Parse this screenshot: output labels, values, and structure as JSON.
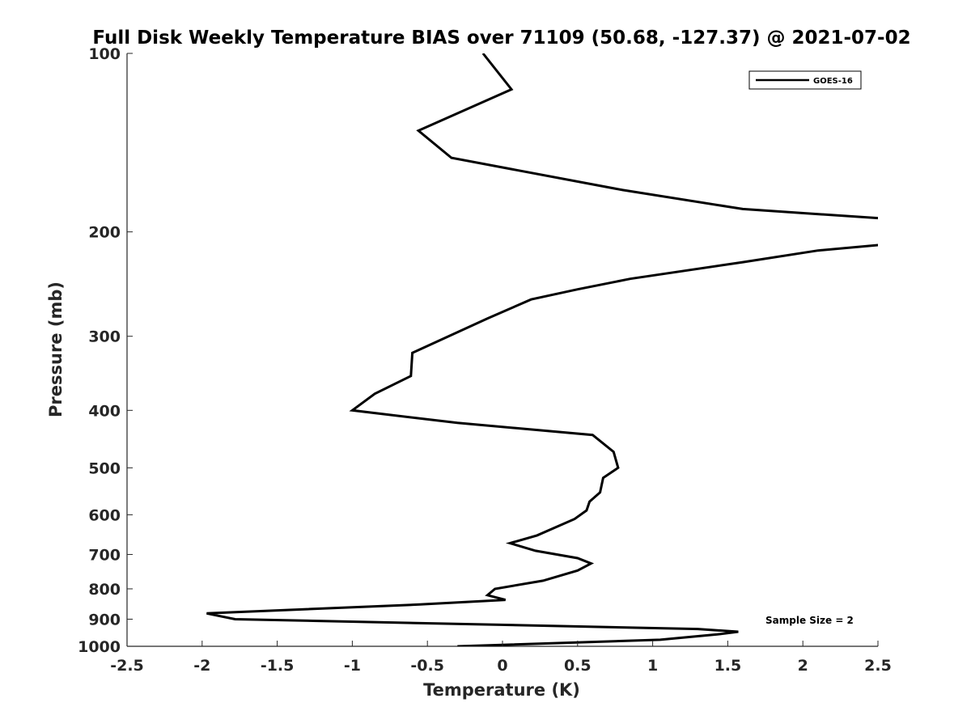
{
  "chart_data": {
    "type": "line",
    "title": "Full Disk Weekly Temperature BIAS over 71109 (50.68, -127.37) @ 2021-07-02",
    "xlabel": "Temperature (K)",
    "ylabel": "Pressure (mb)",
    "xlim": [
      -2.5,
      2.5
    ],
    "ylim": [
      100,
      1000
    ],
    "y_scale": "log",
    "y_reversed": true,
    "x_ticks": [
      "-2.5",
      "-2",
      "-1.5",
      "-1",
      "-0.5",
      "0",
      "0.5",
      "1",
      "1.5",
      "2",
      "2.5"
    ],
    "y_ticks": [
      "100",
      "200",
      "300",
      "400",
      "500",
      "600",
      "700",
      "800",
      "900",
      "1000"
    ],
    "grid": false,
    "legend_position": "top-right",
    "series": [
      {
        "name": "GOES-16",
        "color": "#000000",
        "points": [
          {
            "x": -0.13,
            "p": 100
          },
          {
            "x": 0.06,
            "p": 115
          },
          {
            "x": -0.56,
            "p": 135
          },
          {
            "x": -0.34,
            "p": 150
          },
          {
            "x": 0.8,
            "p": 170
          },
          {
            "x": 1.6,
            "p": 183
          },
          {
            "x": 2.55,
            "p": 190
          },
          {
            "x": 2.55,
            "p": 210
          },
          {
            "x": 2.1,
            "p": 215
          },
          {
            "x": 1.6,
            "p": 225
          },
          {
            "x": 0.85,
            "p": 240
          },
          {
            "x": 0.5,
            "p": 250
          },
          {
            "x": 0.19,
            "p": 260
          },
          {
            "x": -0.1,
            "p": 280
          },
          {
            "x": -0.6,
            "p": 320
          },
          {
            "x": -0.61,
            "p": 350
          },
          {
            "x": -0.85,
            "p": 375
          },
          {
            "x": -1.0,
            "p": 400
          },
          {
            "x": -0.3,
            "p": 420
          },
          {
            "x": 0.6,
            "p": 440
          },
          {
            "x": 0.74,
            "p": 470
          },
          {
            "x": 0.77,
            "p": 500
          },
          {
            "x": 0.67,
            "p": 520
          },
          {
            "x": 0.65,
            "p": 550
          },
          {
            "x": 0.58,
            "p": 570
          },
          {
            "x": 0.56,
            "p": 590
          },
          {
            "x": 0.48,
            "p": 610
          },
          {
            "x": 0.23,
            "p": 650
          },
          {
            "x": 0.05,
            "p": 670
          },
          {
            "x": 0.22,
            "p": 690
          },
          {
            "x": 0.5,
            "p": 710
          },
          {
            "x": 0.59,
            "p": 725
          },
          {
            "x": 0.5,
            "p": 745
          },
          {
            "x": 0.27,
            "p": 775
          },
          {
            "x": -0.05,
            "p": 800
          },
          {
            "x": -0.1,
            "p": 820
          },
          {
            "x": 0.02,
            "p": 835
          },
          {
            "x": -0.55,
            "p": 850
          },
          {
            "x": -1.97,
            "p": 880
          },
          {
            "x": -1.78,
            "p": 900
          },
          {
            "x": 1.3,
            "p": 935
          },
          {
            "x": 1.57,
            "p": 945
          },
          {
            "x": 1.43,
            "p": 955
          },
          {
            "x": 1.05,
            "p": 975
          },
          {
            "x": -0.3,
            "p": 1000
          }
        ]
      }
    ],
    "legend": {
      "entries": [
        "GOES-16"
      ]
    },
    "annotations": [
      {
        "text": "Sample Size = 2",
        "position": "bottom-right"
      }
    ]
  }
}
